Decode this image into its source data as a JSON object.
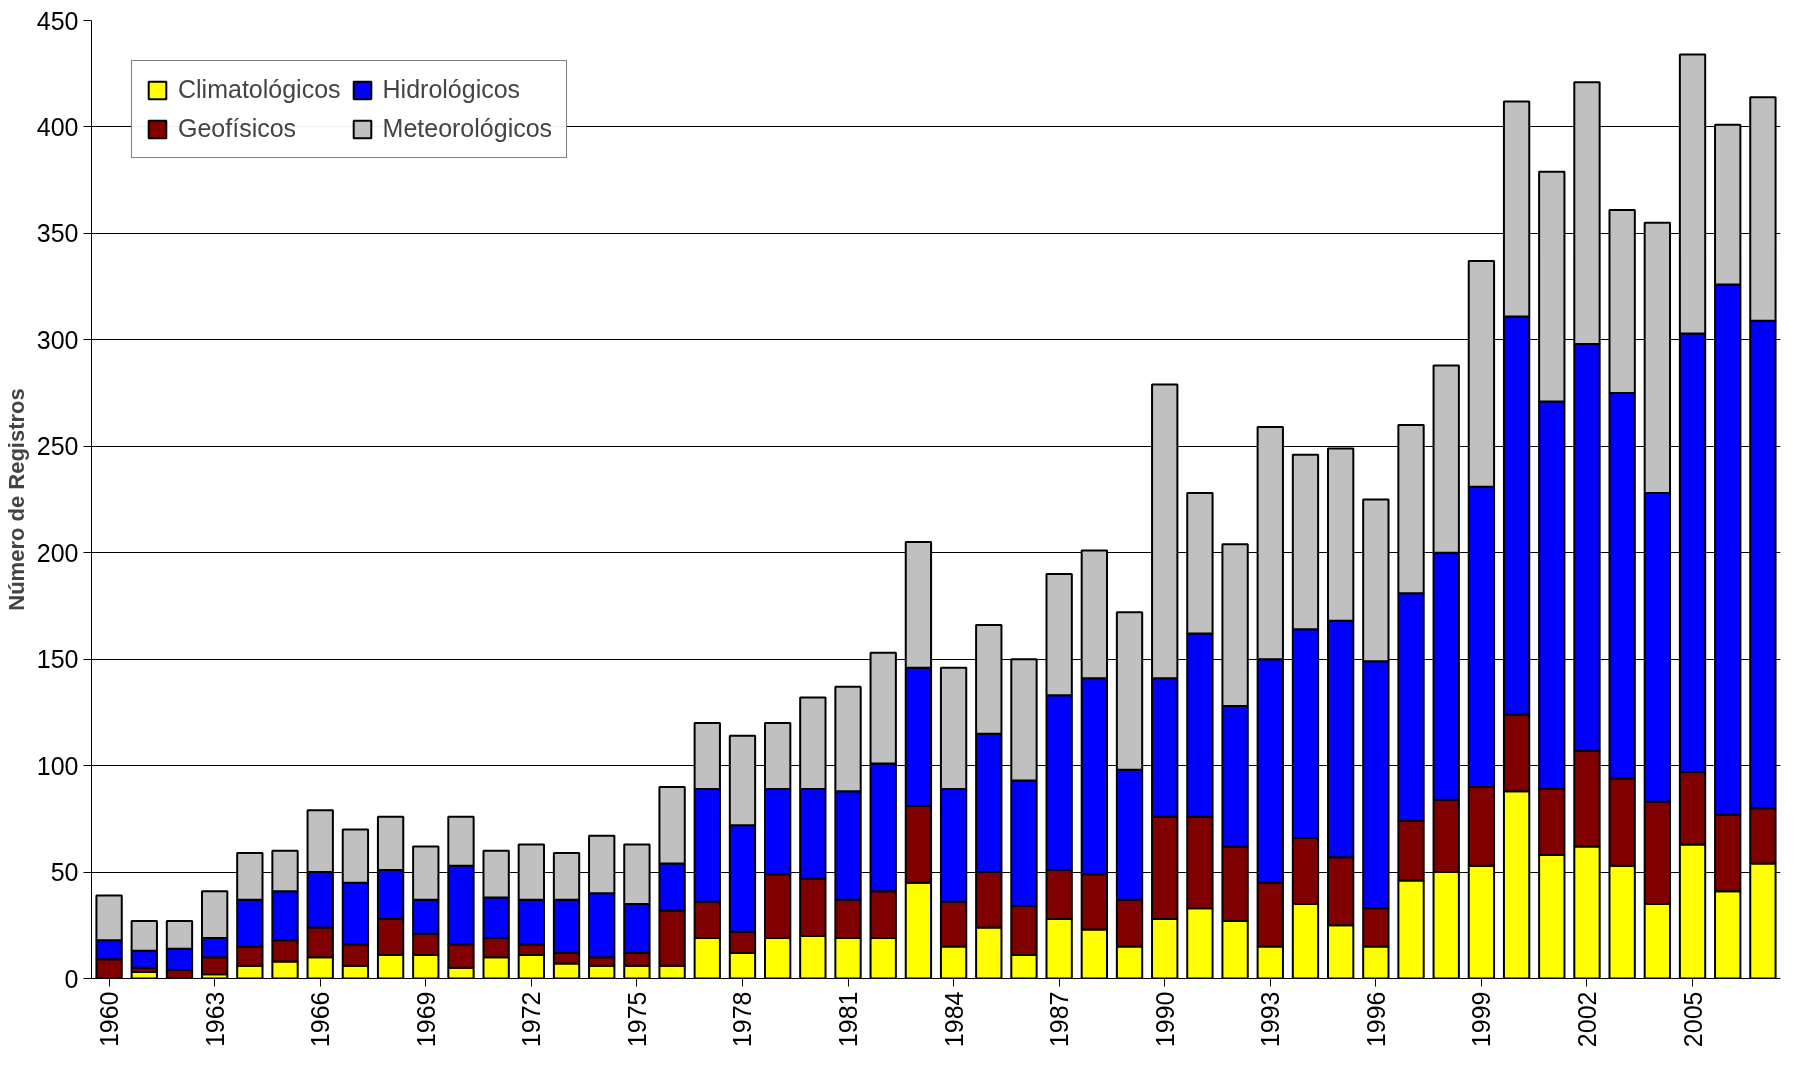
{
  "chart_data": {
    "type": "bar",
    "stacked": true,
    "ylabel": "Número de Registros",
    "categories": [
      "1960",
      null,
      null,
      "1963",
      null,
      null,
      "1966",
      null,
      null,
      "1969",
      null,
      null,
      "1972",
      null,
      null,
      "1975",
      null,
      null,
      "1978",
      null,
      null,
      "1981",
      null,
      null,
      "1984",
      null,
      null,
      "1987",
      null,
      null,
      "1990",
      null,
      null,
      "1993",
      null,
      null,
      "1996",
      null,
      null,
      "1999",
      null,
      null,
      "2002",
      null,
      null,
      "2005",
      null,
      null
    ],
    "series": [
      {
        "name": "Climatológicos",
        "color": "#ffff00",
        "values": [
          null,
          3,
          null,
          2,
          6,
          8,
          10,
          6,
          11,
          11,
          5,
          10,
          11,
          7,
          6,
          6,
          6,
          19,
          12,
          19,
          20,
          19,
          19,
          45,
          15,
          24,
          11,
          28,
          23,
          15,
          28,
          33,
          27,
          15,
          35,
          25,
          15,
          46,
          50,
          53,
          88,
          58,
          62,
          53,
          35,
          63,
          41,
          54
        ]
      },
      {
        "name": "Geofísicos",
        "color": "#800000",
        "values": [
          9,
          2,
          4,
          8,
          9,
          10,
          14,
          10,
          17,
          10,
          11,
          9,
          5,
          5,
          4,
          6,
          26,
          17,
          10,
          30,
          27,
          18,
          22,
          36,
          21,
          26,
          23,
          23,
          26,
          22,
          48,
          43,
          35,
          30,
          31,
          32,
          18,
          28,
          34,
          37,
          36,
          31,
          45,
          41,
          48,
          34,
          36,
          26
        ]
      },
      {
        "name": "Hidrológicos",
        "color": "#0000ff",
        "values": [
          9,
          8,
          10,
          9,
          22,
          23,
          26,
          29,
          23,
          16,
          37,
          19,
          21,
          25,
          30,
          23,
          22,
          53,
          50,
          40,
          42,
          51,
          60,
          65,
          53,
          65,
          59,
          82,
          92,
          61,
          65,
          86,
          66,
          105,
          98,
          111,
          116,
          107,
          116,
          141,
          187,
          182,
          191,
          181,
          145,
          206,
          249,
          229
        ]
      },
      {
        "name": "Meteorológicos",
        "color": "#c0c0c0",
        "values": [
          21,
          14,
          13,
          22,
          22,
          19,
          29,
          25,
          25,
          25,
          23,
          22,
          26,
          22,
          27,
          28,
          36,
          31,
          42,
          31,
          43,
          49,
          52,
          59,
          57,
          51,
          57,
          57,
          60,
          74,
          138,
          66,
          76,
          109,
          82,
          81,
          76,
          79,
          88,
          106,
          101,
          108,
          123,
          86,
          127,
          131,
          75,
          105
        ]
      }
    ],
    "ylim": [
      0,
      450
    ],
    "yticks": [
      0,
      50,
      100,
      150,
      200,
      250,
      300,
      350,
      400,
      450
    ],
    "grid": "y",
    "legend": "top left"
  }
}
